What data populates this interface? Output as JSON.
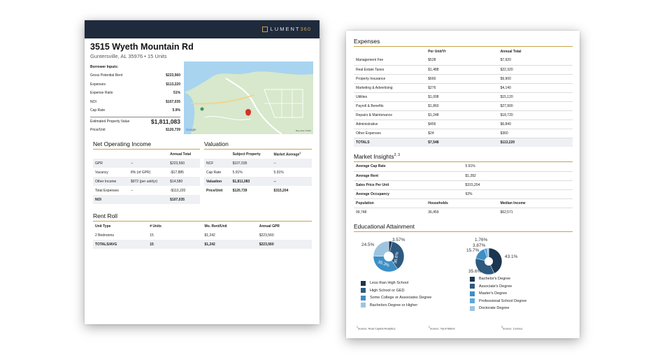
{
  "brand": {
    "logo_text": "LUMENT",
    "logo_num": "360",
    "colors": {
      "navy": "#1f2a3c",
      "gold": "#c9a24a"
    }
  },
  "property": {
    "address": "3515 Wyeth Mountain Rd",
    "subtitle": "Guntersville, AL 35976 • 15 Units"
  },
  "borrower_inputs": {
    "title": "Borrower Inputs:",
    "rows": [
      {
        "label": "Gross Potential Rent",
        "value": "$223,560"
      },
      {
        "label": "Expenses",
        "value": "$113,220"
      },
      {
        "label": "Expense Ratio",
        "value": "51%"
      },
      {
        "label": "NOI",
        "value": "$107,035"
      },
      {
        "label": "Cap Rate",
        "value": "5.9%"
      }
    ],
    "estimated_label": "Estimated Property Value",
    "estimated_value": "$1,811,083",
    "price_label": "Price/Unit",
    "price_value": "$120,739"
  },
  "map": {
    "attribution": "Google",
    "data_note": "Map data ©2020"
  },
  "noi": {
    "title": "Net Operating Income",
    "header": [
      "",
      "",
      "Annual Total"
    ],
    "rows": [
      [
        "GPR",
        "--",
        "$223,560"
      ],
      [
        "Vacancy",
        "8% (of GPR)",
        "-$17,885"
      ],
      [
        "Other Income",
        "$972 (per unit/yr)",
        "$14,580"
      ],
      [
        "Total Expenses",
        "--",
        "-$113,220"
      ],
      [
        "NOI",
        "",
        "$107,035"
      ]
    ]
  },
  "valuation": {
    "title": "Valuation",
    "header": [
      "",
      "Subject Property",
      "Market Average"
    ],
    "header_sup": "1",
    "rows": [
      [
        "NCF",
        "$107,035",
        "--"
      ],
      [
        "Cap Rate",
        "5.91%",
        "5.91%"
      ],
      [
        "Valuation",
        "$1,811,083",
        "--"
      ],
      [
        "Price/Unit",
        "$120,739",
        "$315,204"
      ]
    ]
  },
  "rent_roll": {
    "title": "Rent Roll",
    "header": [
      "Unit Type",
      "# Units",
      "Mo. Rent/Unit",
      "Annual GPR"
    ],
    "rows": [
      [
        "2 Bedrooms",
        "15",
        "$1,242",
        "$223,560"
      ],
      [
        "TOTALS/AVG",
        "15",
        "$1,242",
        "$223,560"
      ]
    ]
  },
  "expenses": {
    "title": "Expenses",
    "header": [
      "",
      "Per Unit/Yr",
      "Annual Total"
    ],
    "rows": [
      [
        "Management Fee",
        "$528",
        "$7,920"
      ],
      [
        "Real Estate Taxes",
        "$1,488",
        "$22,320"
      ],
      [
        "Property Insurance",
        "$660",
        "$9,900"
      ],
      [
        "Marketing & Advertising",
        "$276",
        "$4,140"
      ],
      [
        "Utilities",
        "$1,008",
        "$15,120"
      ],
      [
        "Payroll & Benefits",
        "$1,860",
        "$27,900"
      ],
      [
        "Repairs & Maintenance",
        "$1,248",
        "$18,720"
      ],
      [
        "Administrative",
        "$456",
        "$6,840"
      ],
      [
        "Other Expenses",
        "$24",
        "$360"
      ],
      [
        "TOTALS",
        "$7,548",
        "$113,220"
      ]
    ]
  },
  "market_insights": {
    "title": "Market Insights",
    "title_sup": "2, 3",
    "rows": [
      [
        "Average Cap Rate",
        "5.91%"
      ],
      [
        "Average Rent",
        "$1,282"
      ],
      [
        "Sales Price Per Unit",
        "$315,204"
      ],
      [
        "Average Occupancy",
        "92%"
      ]
    ],
    "demo_header": [
      "Population",
      "Households",
      "Median Income"
    ],
    "demo_values": [
      "99,748",
      "36,459",
      "$62,571"
    ]
  },
  "education": {
    "title": "Educational Attainment",
    "left_legend": [
      "Less than High School",
      "High School or GED",
      "Some College or Associates Degree",
      "Bachelors Degree or Higher"
    ],
    "right_legend": [
      "Bachelor's Degree",
      "Associate's Degree",
      "Master's Degree",
      "Professional School Degree",
      "Doctorate Degree"
    ],
    "left_labels": {
      "a": "3.57%",
      "b": "36.6%",
      "c": "35.3%",
      "d": "24.5%"
    },
    "right_labels": {
      "a": "43.1%",
      "b": "35.6%",
      "c": "15.7%",
      "d": "3.87%",
      "e": "1.76%"
    }
  },
  "chart_data": [
    {
      "type": "pie",
      "categories": [
        "Less than High School",
        "High School or GED",
        "Some College or Associates Degree",
        "Bachelors Degree or Higher"
      ],
      "values": [
        3.57,
        36.6,
        35.3,
        24.5
      ],
      "colors": [
        "#1c3550",
        "#2e5a80",
        "#3d8fc6",
        "#9ec4e0"
      ]
    },
    {
      "type": "pie",
      "categories": [
        "Bachelor's Degree",
        "Associate's Degree",
        "Master's Degree",
        "Professional School Degree",
        "Doctorate Degree"
      ],
      "values": [
        43.1,
        35.6,
        15.7,
        3.87,
        1.76
      ],
      "colors": [
        "#1c3550",
        "#2e5a80",
        "#3d8fc6",
        "#5ea7d8",
        "#9ec4e0"
      ]
    }
  ],
  "footnotes": [
    "Source: Real Capital Analytics",
    "Source: Yardi Matrix",
    "Source: Census"
  ]
}
